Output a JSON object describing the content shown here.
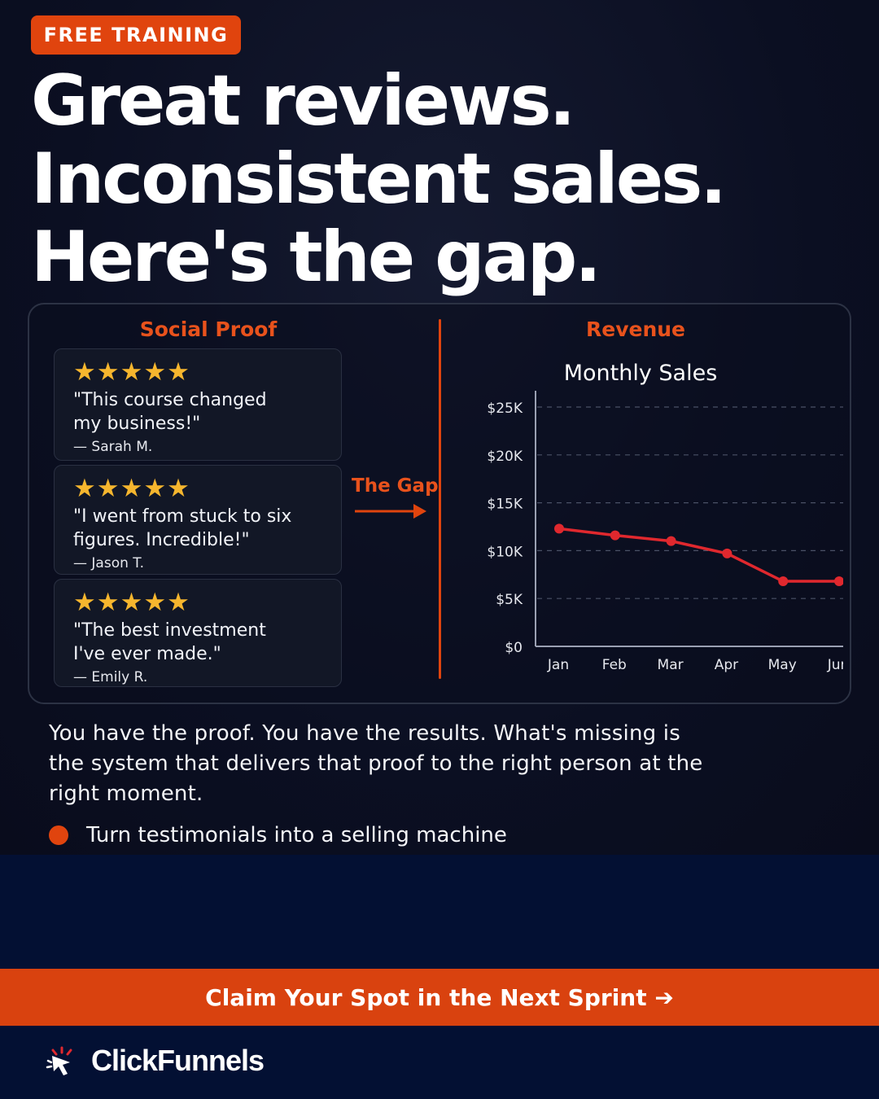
{
  "badge": {
    "label": "FREE TRAINING"
  },
  "headline": {
    "line1": "Great reviews.",
    "line2": "Inconsistent sales.",
    "line3": "Here's the gap."
  },
  "social_proof": {
    "title": "Social Proof",
    "reviews": [
      {
        "stars": "★★★★★",
        "rating": 5,
        "quote_line1": "\"This course changed",
        "quote_line2": "my business!\"",
        "author": "— Sarah M."
      },
      {
        "stars": "★★★★★",
        "rating": 5,
        "quote_line1": "\"I went from stuck to six",
        "quote_line2": "figures. Incredible!\"",
        "author": "— Jason T."
      },
      {
        "stars": "★★★★★",
        "rating": 5,
        "quote_line1": "\"The best investment",
        "quote_line2": "I've ever made.\"",
        "author": "— Emily R."
      }
    ]
  },
  "gap": {
    "label": "The Gap"
  },
  "revenue": {
    "title": "Revenue"
  },
  "chart_data": {
    "type": "line",
    "title": "Monthly Sales",
    "categories": [
      "Jan",
      "Feb",
      "Mar",
      "Apr",
      "May",
      "Jun"
    ],
    "values": [
      12300,
      11600,
      11000,
      9700,
      6800,
      6800
    ],
    "ylim": [
      0,
      25000
    ],
    "yticks": [
      0,
      5000,
      10000,
      15000,
      20000,
      25000
    ],
    "ytick_labels": [
      "$0",
      "$5K",
      "$10K",
      "$15K",
      "$20K",
      "$25K"
    ],
    "grid": true,
    "line_color": "#e0282e"
  },
  "body": {
    "paragraph": "You have the proof. You have the results. What's missing is the system that delivers that proof to the right person at the right moment.",
    "bullet": "Turn testimonials into a selling machine"
  },
  "cta": {
    "label": "Claim Your Spot in the Next Sprint ➔"
  },
  "brand": {
    "name": "ClickFunnels",
    "icon": "clickfunnels-cursor-icon"
  },
  "colors": {
    "accent": "#e0440e",
    "star": "#f6b62e",
    "background": "#0b0f22",
    "footer": "#031033"
  }
}
